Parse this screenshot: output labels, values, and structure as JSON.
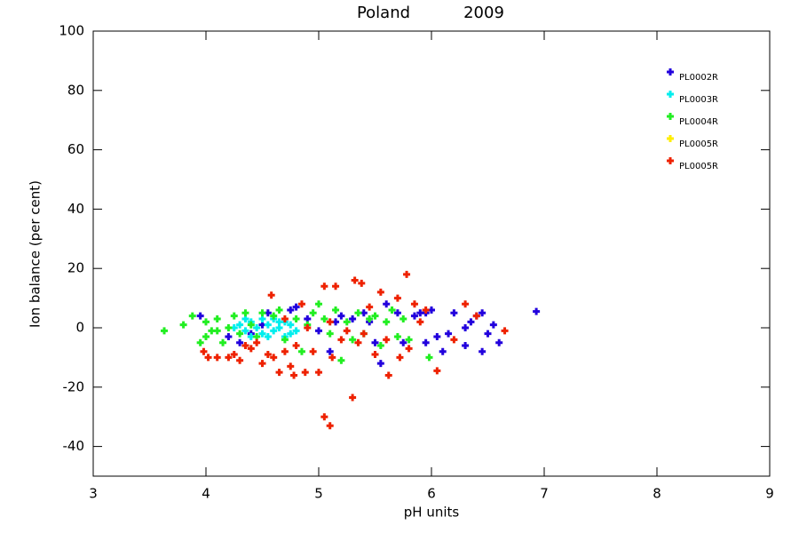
{
  "chart_data": {
    "type": "scatter",
    "title": "Poland",
    "subtitle": "2009",
    "x_label": "pH units",
    "y_label": "Ion balance (per cent)",
    "xlim": [
      3,
      9
    ],
    "xticks": [
      3,
      4,
      5,
      6,
      7,
      8,
      9
    ],
    "ylim": [
      -50,
      100
    ],
    "yticks": [
      -40,
      -20,
      0,
      20,
      40,
      60,
      80,
      100
    ],
    "legend_position": "upper-right",
    "series": [
      {
        "name": "PL0002R",
        "color": "#2200dd",
        "x": [
          3.95,
          4.2,
          4.3,
          4.55,
          4.75,
          4.8,
          4.9,
          5.0,
          5.1,
          5.15,
          5.2,
          5.3,
          5.4,
          5.45,
          5.5,
          5.55,
          5.6,
          5.7,
          5.75,
          5.85,
          5.9,
          5.95,
          6.0,
          5.95,
          6.05,
          6.1,
          6.15,
          6.2,
          6.3,
          6.3,
          6.35,
          6.4,
          6.45,
          6.45,
          6.5,
          6.55,
          6.6,
          6.93,
          4.4,
          4.5
        ],
        "values": [
          4,
          -3,
          -5,
          5,
          6,
          7,
          3,
          -1,
          -8,
          2,
          4,
          3,
          5,
          2,
          -5,
          -12,
          8,
          5,
          -5,
          4,
          5,
          5,
          6,
          -5,
          -3,
          -8,
          -2,
          5,
          -6,
          0,
          2,
          4,
          5,
          -8,
          -2,
          1,
          -5,
          5.5,
          -2,
          1
        ]
      },
      {
        "name": "PL0003R",
        "color": "#00eeee",
        "x": [
          4.3,
          4.35,
          4.4,
          4.45,
          4.5,
          4.55,
          4.6,
          4.6,
          4.65,
          4.7,
          4.7,
          4.75,
          4.5,
          4.4,
          4.8,
          4.25,
          4.35,
          4.55,
          4.65,
          4.75
        ],
        "values": [
          1,
          -1,
          2,
          0,
          -2,
          1,
          3,
          -1,
          0,
          -3,
          2,
          1,
          3,
          -3,
          -1,
          0,
          3,
          -3,
          2,
          -2
        ]
      },
      {
        "name": "PL0004R",
        "color": "#22ee22",
        "x": [
          3.63,
          3.8,
          3.88,
          3.95,
          4.0,
          4.05,
          4.1,
          4.15,
          4.2,
          4.25,
          4.3,
          4.35,
          4.4,
          4.45,
          4.5,
          4.6,
          4.65,
          4.7,
          4.8,
          4.85,
          4.9,
          4.95,
          5.0,
          5.05,
          5.1,
          5.15,
          5.2,
          5.25,
          5.3,
          5.35,
          5.4,
          5.45,
          5.5,
          5.55,
          5.6,
          5.65,
          5.7,
          5.75,
          5.8,
          5.98,
          4.0,
          4.1
        ],
        "values": [
          -1,
          1,
          4,
          -5,
          2,
          -1,
          3,
          -5,
          0,
          4,
          -2,
          5,
          1,
          -3,
          5,
          4,
          6,
          -4,
          3,
          -8,
          1,
          5,
          8,
          3,
          -2,
          6,
          -11,
          2,
          -4,
          5,
          -2,
          3,
          4,
          -6,
          2,
          6,
          -3,
          3,
          -4,
          -10,
          -3,
          -1
        ]
      },
      {
        "name": "PL0005R",
        "color": "#ffee00",
        "x": [],
        "values": []
      },
      {
        "name": "PL0005R",
        "color": "#ee2200",
        "x": [
          3.98,
          4.02,
          4.1,
          4.2,
          4.25,
          4.3,
          4.35,
          4.4,
          4.45,
          4.5,
          4.55,
          4.58,
          4.6,
          4.65,
          4.7,
          4.75,
          4.78,
          4.8,
          4.85,
          4.88,
          4.95,
          5.0,
          5.05,
          5.1,
          5.12,
          5.05,
          5.15,
          5.2,
          5.25,
          5.3,
          5.32,
          5.38,
          5.4,
          5.45,
          5.5,
          5.55,
          5.6,
          5.62,
          5.7,
          5.72,
          5.78,
          5.8,
          5.85,
          5.95,
          6.05,
          6.3,
          6.4,
          6.65,
          4.7,
          4.9,
          5.1,
          5.35,
          6.2,
          5.9
        ],
        "values": [
          -8,
          -10,
          -10,
          -10,
          -9,
          -11,
          -6,
          -7,
          -5,
          -12,
          -9,
          11,
          -10,
          -15,
          -8,
          -13,
          -16,
          -6,
          8,
          -15,
          -8,
          -15,
          -30,
          -33,
          -10,
          14,
          14,
          -4,
          -1,
          -23.5,
          16,
          15,
          -2,
          7,
          -9,
          12,
          -4,
          -16,
          10,
          -10,
          18,
          -7,
          8,
          6,
          -14.5,
          8,
          4,
          -1,
          3,
          0,
          2,
          -5,
          -4,
          2
        ]
      }
    ]
  }
}
